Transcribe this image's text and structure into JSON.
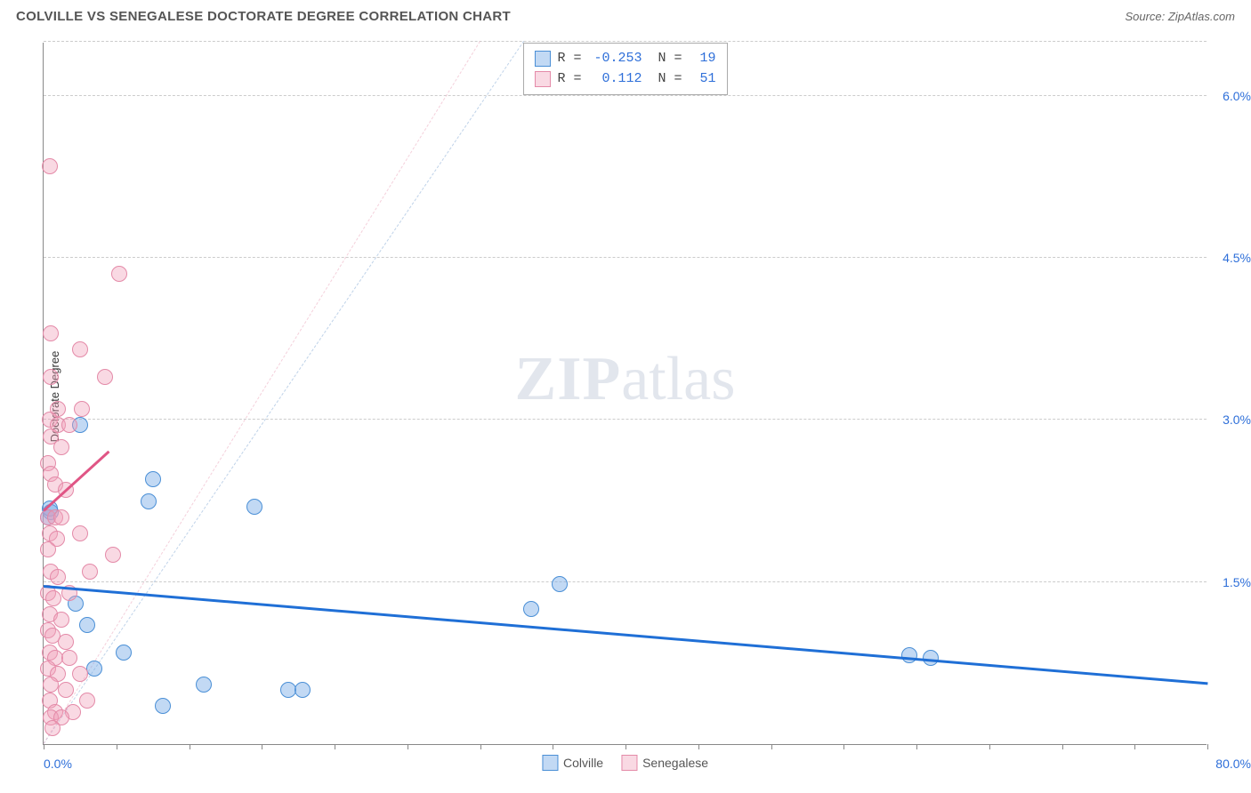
{
  "header": {
    "title": "COLVILLE VS SENEGALESE DOCTORATE DEGREE CORRELATION CHART",
    "source": "Source: ZipAtlas.com"
  },
  "watermark": {
    "zip": "ZIP",
    "atlas": "atlas"
  },
  "chart": {
    "type": "scatter",
    "ylabel": "Doctorate Degree",
    "xlim": [
      0,
      80
    ],
    "ylim": [
      0,
      6.5
    ],
    "background_color": "#ffffff",
    "grid_color": "#cccccc",
    "axis_color": "#888888",
    "ygrid": [
      {
        "v": 1.5,
        "label": "1.5%"
      },
      {
        "v": 3.0,
        "label": "3.0%"
      },
      {
        "v": 4.5,
        "label": "4.5%"
      },
      {
        "v": 6.0,
        "label": "6.0%"
      },
      {
        "v": 6.5,
        "label": ""
      }
    ],
    "xticks": [
      0,
      5,
      10,
      15,
      20,
      25,
      30,
      35,
      40,
      45,
      50,
      55,
      60,
      65,
      70,
      75,
      80
    ],
    "xaxis_labels": [
      {
        "v": 0,
        "label": "0.0%",
        "align": "left"
      },
      {
        "v": 80,
        "label": "80.0%",
        "align": "right"
      }
    ],
    "series": [
      {
        "name": "Colville",
        "color_fill": "rgba(120,170,230,0.45)",
        "color_stroke": "#4a8fd6",
        "marker_r": 9,
        "trend": {
          "x1": 0,
          "y1": 1.45,
          "x2": 80,
          "y2": 0.55,
          "color": "#1f6fd6",
          "width": 2.5,
          "dash": "solid"
        },
        "diag": {
          "x1": 0,
          "y1": 0,
          "x2": 33,
          "y2": 6.5,
          "color": "rgba(140,175,215,0.55)",
          "width": 1.5,
          "dash": "dashed"
        },
        "points": [
          {
            "x": 0.5,
            "y": 2.15
          },
          {
            "x": 0.4,
            "y": 2.18
          },
          {
            "x": 0.3,
            "y": 2.1
          },
          {
            "x": 2.5,
            "y": 2.95
          },
          {
            "x": 7.5,
            "y": 2.45
          },
          {
            "x": 7.2,
            "y": 2.25
          },
          {
            "x": 14.5,
            "y": 2.2
          },
          {
            "x": 2.2,
            "y": 1.3
          },
          {
            "x": 3.0,
            "y": 1.1
          },
          {
            "x": 5.5,
            "y": 0.85
          },
          {
            "x": 8.2,
            "y": 0.35
          },
          {
            "x": 11.0,
            "y": 0.55
          },
          {
            "x": 16.8,
            "y": 0.5
          },
          {
            "x": 17.8,
            "y": 0.5
          },
          {
            "x": 33.5,
            "y": 1.25
          },
          {
            "x": 35.5,
            "y": 1.48
          },
          {
            "x": 59.5,
            "y": 0.82
          },
          {
            "x": 61.0,
            "y": 0.8
          },
          {
            "x": 3.5,
            "y": 0.7
          }
        ]
      },
      {
        "name": "Senegalese",
        "color_fill": "rgba(240,160,185,0.40)",
        "color_stroke": "#e48aa8",
        "marker_r": 9,
        "trend": {
          "x1": 0,
          "y1": 2.15,
          "x2": 4.5,
          "y2": 2.7,
          "color": "#e05585",
          "width": 2.5,
          "dash": "solid"
        },
        "diag": {
          "x1": 0,
          "y1": 0,
          "x2": 30,
          "y2": 6.5,
          "color": "rgba(235,170,190,0.55)",
          "width": 1.5,
          "dash": "dashed"
        },
        "points": [
          {
            "x": 0.4,
            "y": 5.35
          },
          {
            "x": 5.2,
            "y": 4.35
          },
          {
            "x": 0.5,
            "y": 3.8
          },
          {
            "x": 2.5,
            "y": 3.65
          },
          {
            "x": 0.5,
            "y": 3.4
          },
          {
            "x": 4.2,
            "y": 3.4
          },
          {
            "x": 1.0,
            "y": 3.1
          },
          {
            "x": 2.6,
            "y": 3.1
          },
          {
            "x": 0.4,
            "y": 3.0
          },
          {
            "x": 1.0,
            "y": 2.95
          },
          {
            "x": 1.8,
            "y": 2.95
          },
          {
            "x": 0.5,
            "y": 2.85
          },
          {
            "x": 1.2,
            "y": 2.75
          },
          {
            "x": 0.3,
            "y": 2.6
          },
          {
            "x": 0.5,
            "y": 2.5
          },
          {
            "x": 0.8,
            "y": 2.4
          },
          {
            "x": 1.5,
            "y": 2.35
          },
          {
            "x": 0.3,
            "y": 2.1
          },
          {
            "x": 0.8,
            "y": 2.1
          },
          {
            "x": 1.2,
            "y": 2.1
          },
          {
            "x": 0.4,
            "y": 1.95
          },
          {
            "x": 0.9,
            "y": 1.9
          },
          {
            "x": 0.3,
            "y": 1.8
          },
          {
            "x": 4.8,
            "y": 1.75
          },
          {
            "x": 0.5,
            "y": 1.6
          },
          {
            "x": 1.0,
            "y": 1.55
          },
          {
            "x": 0.3,
            "y": 1.4
          },
          {
            "x": 0.7,
            "y": 1.35
          },
          {
            "x": 0.4,
            "y": 1.2
          },
          {
            "x": 1.2,
            "y": 1.15
          },
          {
            "x": 0.3,
            "y": 1.05
          },
          {
            "x": 0.6,
            "y": 1.0
          },
          {
            "x": 1.5,
            "y": 0.95
          },
          {
            "x": 0.4,
            "y": 0.85
          },
          {
            "x": 0.8,
            "y": 0.8
          },
          {
            "x": 1.8,
            "y": 0.8
          },
          {
            "x": 0.3,
            "y": 0.7
          },
          {
            "x": 1.0,
            "y": 0.65
          },
          {
            "x": 2.5,
            "y": 0.65
          },
          {
            "x": 0.5,
            "y": 0.55
          },
          {
            "x": 1.5,
            "y": 0.5
          },
          {
            "x": 0.4,
            "y": 0.4
          },
          {
            "x": 3.0,
            "y": 0.4
          },
          {
            "x": 0.8,
            "y": 0.3
          },
          {
            "x": 2.0,
            "y": 0.3
          },
          {
            "x": 0.5,
            "y": 0.25
          },
          {
            "x": 1.2,
            "y": 0.25
          },
          {
            "x": 0.6,
            "y": 0.15
          },
          {
            "x": 2.5,
            "y": 1.95
          },
          {
            "x": 3.2,
            "y": 1.6
          },
          {
            "x": 1.8,
            "y": 1.4
          }
        ]
      }
    ],
    "stats": [
      {
        "series": 0,
        "r_label": "R =",
        "r": "-0.253",
        "n_label": "N =",
        "n": "19"
      },
      {
        "series": 1,
        "r_label": "R =",
        "r": "0.112",
        "n_label": "N =",
        "n": "51"
      }
    ],
    "legend": [
      {
        "series": 0,
        "label": "Colville"
      },
      {
        "series": 1,
        "label": "Senegalese"
      }
    ]
  }
}
